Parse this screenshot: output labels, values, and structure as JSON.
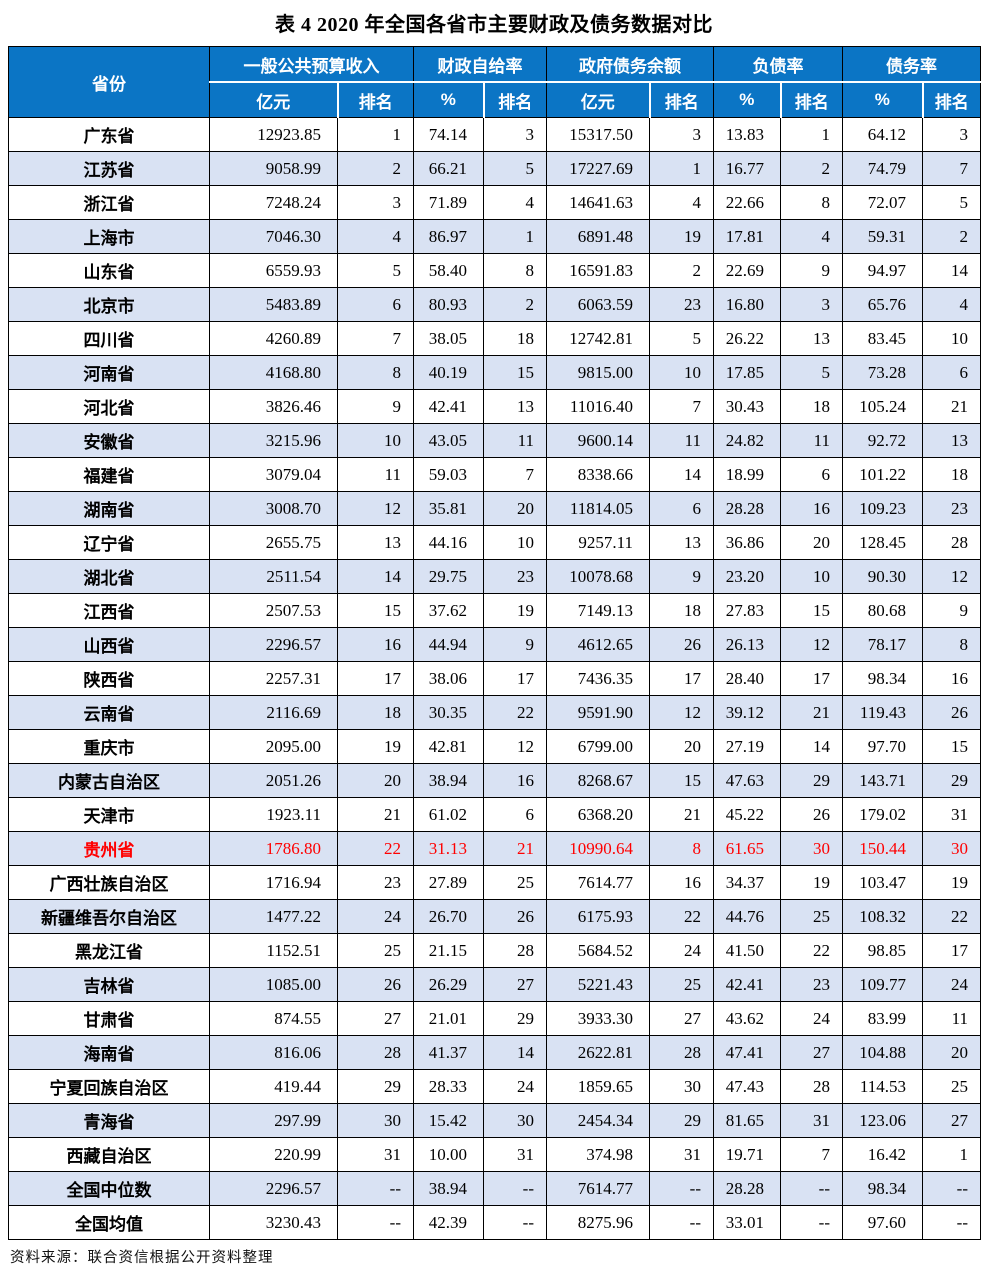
{
  "title": "表 4  2020 年全国各省市主要财政及债务数据对比",
  "colors": {
    "header_bg": "#0b75c5",
    "band_bg": "#d9e2f3",
    "highlight_text": "#ff0000",
    "border": "#000000"
  },
  "table": {
    "province_header": "省份",
    "groups": [
      {
        "label": "一般公共预算收入",
        "sub": [
          "亿元",
          "排名"
        ]
      },
      {
        "label": "财政自给率",
        "sub": [
          "%",
          "排名"
        ]
      },
      {
        "label": "政府债务余额",
        "sub": [
          "亿元",
          "排名"
        ]
      },
      {
        "label": "负债率",
        "sub": [
          "%",
          "排名"
        ]
      },
      {
        "label": "债务率",
        "sub": [
          "%",
          "排名"
        ]
      }
    ],
    "rows": [
      {
        "province": "广东省",
        "highlight": false,
        "values": [
          "12923.85",
          "1",
          "74.14",
          "3",
          "15317.50",
          "3",
          "13.83",
          "1",
          "64.12",
          "3"
        ]
      },
      {
        "province": "江苏省",
        "highlight": false,
        "values": [
          "9058.99",
          "2",
          "66.21",
          "5",
          "17227.69",
          "1",
          "16.77",
          "2",
          "74.79",
          "7"
        ]
      },
      {
        "province": "浙江省",
        "highlight": false,
        "values": [
          "7248.24",
          "3",
          "71.89",
          "4",
          "14641.63",
          "4",
          "22.66",
          "8",
          "72.07",
          "5"
        ]
      },
      {
        "province": "上海市",
        "highlight": false,
        "values": [
          "7046.30",
          "4",
          "86.97",
          "1",
          "6891.48",
          "19",
          "17.81",
          "4",
          "59.31",
          "2"
        ]
      },
      {
        "province": "山东省",
        "highlight": false,
        "values": [
          "6559.93",
          "5",
          "58.40",
          "8",
          "16591.83",
          "2",
          "22.69",
          "9",
          "94.97",
          "14"
        ]
      },
      {
        "province": "北京市",
        "highlight": false,
        "values": [
          "5483.89",
          "6",
          "80.93",
          "2",
          "6063.59",
          "23",
          "16.80",
          "3",
          "65.76",
          "4"
        ]
      },
      {
        "province": "四川省",
        "highlight": false,
        "values": [
          "4260.89",
          "7",
          "38.05",
          "18",
          "12742.81",
          "5",
          "26.22",
          "13",
          "83.45",
          "10"
        ]
      },
      {
        "province": "河南省",
        "highlight": false,
        "values": [
          "4168.80",
          "8",
          "40.19",
          "15",
          "9815.00",
          "10",
          "17.85",
          "5",
          "73.28",
          "6"
        ]
      },
      {
        "province": "河北省",
        "highlight": false,
        "values": [
          "3826.46",
          "9",
          "42.41",
          "13",
          "11016.40",
          "7",
          "30.43",
          "18",
          "105.24",
          "21"
        ]
      },
      {
        "province": "安徽省",
        "highlight": false,
        "values": [
          "3215.96",
          "10",
          "43.05",
          "11",
          "9600.14",
          "11",
          "24.82",
          "11",
          "92.72",
          "13"
        ]
      },
      {
        "province": "福建省",
        "highlight": false,
        "values": [
          "3079.04",
          "11",
          "59.03",
          "7",
          "8338.66",
          "14",
          "18.99",
          "6",
          "101.22",
          "18"
        ]
      },
      {
        "province": "湖南省",
        "highlight": false,
        "values": [
          "3008.70",
          "12",
          "35.81",
          "20",
          "11814.05",
          "6",
          "28.28",
          "16",
          "109.23",
          "23"
        ]
      },
      {
        "province": "辽宁省",
        "highlight": false,
        "values": [
          "2655.75",
          "13",
          "44.16",
          "10",
          "9257.11",
          "13",
          "36.86",
          "20",
          "128.45",
          "28"
        ]
      },
      {
        "province": "湖北省",
        "highlight": false,
        "values": [
          "2511.54",
          "14",
          "29.75",
          "23",
          "10078.68",
          "9",
          "23.20",
          "10",
          "90.30",
          "12"
        ]
      },
      {
        "province": "江西省",
        "highlight": false,
        "values": [
          "2507.53",
          "15",
          "37.62",
          "19",
          "7149.13",
          "18",
          "27.83",
          "15",
          "80.68",
          "9"
        ]
      },
      {
        "province": "山西省",
        "highlight": false,
        "values": [
          "2296.57",
          "16",
          "44.94",
          "9",
          "4612.65",
          "26",
          "26.13",
          "12",
          "78.17",
          "8"
        ]
      },
      {
        "province": "陕西省",
        "highlight": false,
        "values": [
          "2257.31",
          "17",
          "38.06",
          "17",
          "7436.35",
          "17",
          "28.40",
          "17",
          "98.34",
          "16"
        ]
      },
      {
        "province": "云南省",
        "highlight": false,
        "values": [
          "2116.69",
          "18",
          "30.35",
          "22",
          "9591.90",
          "12",
          "39.12",
          "21",
          "119.43",
          "26"
        ]
      },
      {
        "province": "重庆市",
        "highlight": false,
        "values": [
          "2095.00",
          "19",
          "42.81",
          "12",
          "6799.00",
          "20",
          "27.19",
          "14",
          "97.70",
          "15"
        ]
      },
      {
        "province": "内蒙古自治区",
        "highlight": false,
        "values": [
          "2051.26",
          "20",
          "38.94",
          "16",
          "8268.67",
          "15",
          "47.63",
          "29",
          "143.71",
          "29"
        ]
      },
      {
        "province": "天津市",
        "highlight": false,
        "values": [
          "1923.11",
          "21",
          "61.02",
          "6",
          "6368.20",
          "21",
          "45.22",
          "26",
          "179.02",
          "31"
        ]
      },
      {
        "province": "贵州省",
        "highlight": true,
        "values": [
          "1786.80",
          "22",
          "31.13",
          "21",
          "10990.64",
          "8",
          "61.65",
          "30",
          "150.44",
          "30"
        ]
      },
      {
        "province": "广西壮族自治区",
        "highlight": false,
        "values": [
          "1716.94",
          "23",
          "27.89",
          "25",
          "7614.77",
          "16",
          "34.37",
          "19",
          "103.47",
          "19"
        ]
      },
      {
        "province": "新疆维吾尔自治区",
        "highlight": false,
        "values": [
          "1477.22",
          "24",
          "26.70",
          "26",
          "6175.93",
          "22",
          "44.76",
          "25",
          "108.32",
          "22"
        ]
      },
      {
        "province": "黑龙江省",
        "highlight": false,
        "values": [
          "1152.51",
          "25",
          "21.15",
          "28",
          "5684.52",
          "24",
          "41.50",
          "22",
          "98.85",
          "17"
        ]
      },
      {
        "province": "吉林省",
        "highlight": false,
        "values": [
          "1085.00",
          "26",
          "26.29",
          "27",
          "5221.43",
          "25",
          "42.41",
          "23",
          "109.77",
          "24"
        ]
      },
      {
        "province": "甘肃省",
        "highlight": false,
        "values": [
          "874.55",
          "27",
          "21.01",
          "29",
          "3933.30",
          "27",
          "43.62",
          "24",
          "83.99",
          "11"
        ]
      },
      {
        "province": "海南省",
        "highlight": false,
        "values": [
          "816.06",
          "28",
          "41.37",
          "14",
          "2622.81",
          "28",
          "47.41",
          "27",
          "104.88",
          "20"
        ]
      },
      {
        "province": "宁夏回族自治区",
        "highlight": false,
        "values": [
          "419.44",
          "29",
          "28.33",
          "24",
          "1859.65",
          "30",
          "47.43",
          "28",
          "114.53",
          "25"
        ]
      },
      {
        "province": "青海省",
        "highlight": false,
        "values": [
          "297.99",
          "30",
          "15.42",
          "30",
          "2454.34",
          "29",
          "81.65",
          "31",
          "123.06",
          "27"
        ]
      },
      {
        "province": "西藏自治区",
        "highlight": false,
        "values": [
          "220.99",
          "31",
          "10.00",
          "31",
          "374.98",
          "31",
          "19.71",
          "7",
          "16.42",
          "1"
        ]
      },
      {
        "province": "全国中位数",
        "highlight": false,
        "values": [
          "2296.57",
          "--",
          "38.94",
          "--",
          "7614.77",
          "--",
          "28.28",
          "--",
          "98.34",
          "--"
        ]
      },
      {
        "province": "全国均值",
        "highlight": false,
        "values": [
          "3230.43",
          "--",
          "42.39",
          "--",
          "8275.96",
          "--",
          "33.01",
          "--",
          "97.60",
          "--"
        ]
      }
    ]
  },
  "footer": {
    "source": "资料来源：联合资信根据公开资料整理"
  }
}
